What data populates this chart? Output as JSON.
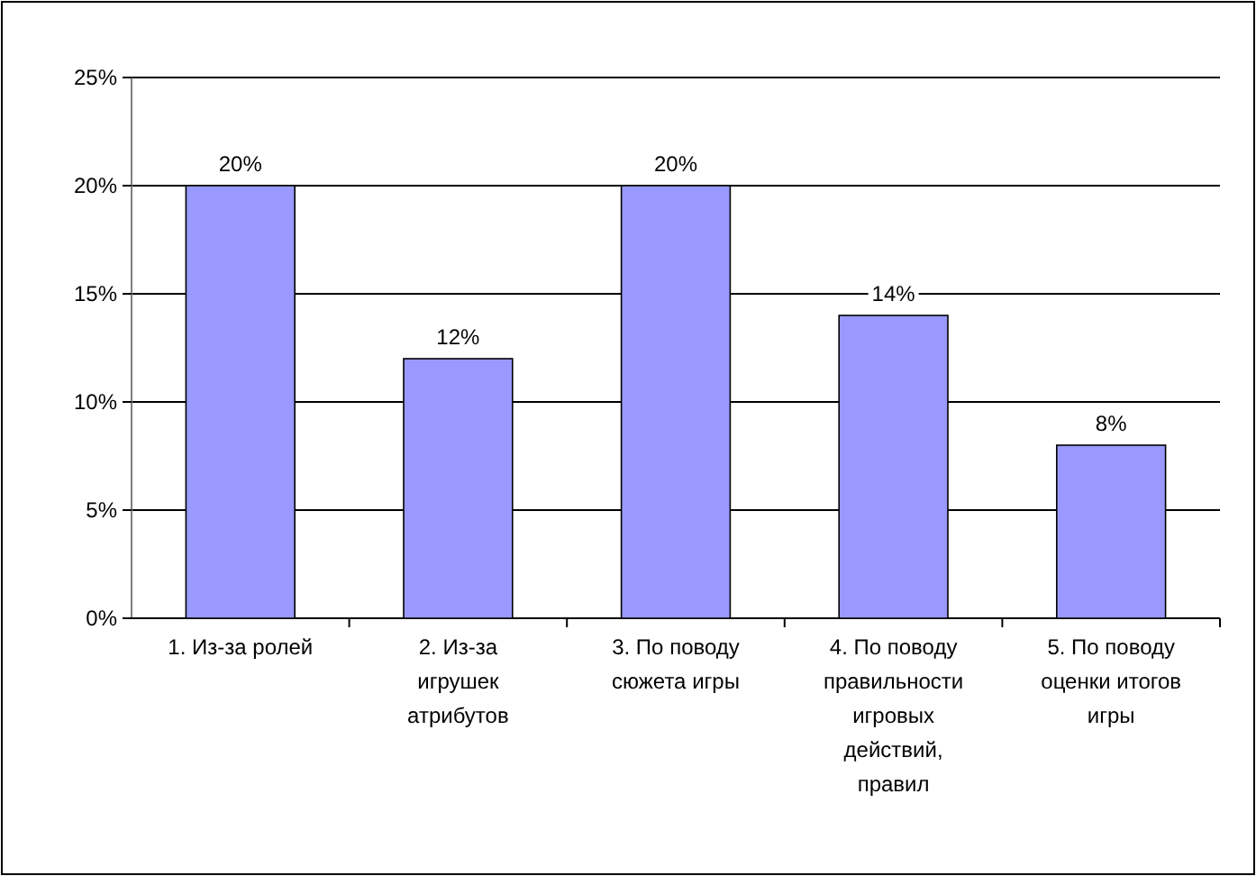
{
  "chart_data": {
    "type": "bar",
    "categories": [
      "1. Из-за ролей",
      "2. Из-за игрушек атрибутов",
      "3. По поводу сюжета игры",
      "4. По поводу правильности игровых действий, правил",
      "5. По поводу оценки итогов игры"
    ],
    "values": [
      20,
      12,
      20,
      14,
      8
    ],
    "color": "#9999ff",
    "value_labels": [
      "20%",
      "12%",
      "20%",
      "14%",
      "8%"
    ],
    "ylim": [
      0,
      25
    ],
    "yticks": [
      {
        "value": 0,
        "label": "0%"
      },
      {
        "value": 5,
        "label": "5%"
      },
      {
        "value": 10,
        "label": "10%"
      },
      {
        "value": 15,
        "label": "15%"
      },
      {
        "value": 20,
        "label": "20%"
      },
      {
        "value": 25,
        "label": "25%"
      }
    ],
    "grid": "y"
  }
}
